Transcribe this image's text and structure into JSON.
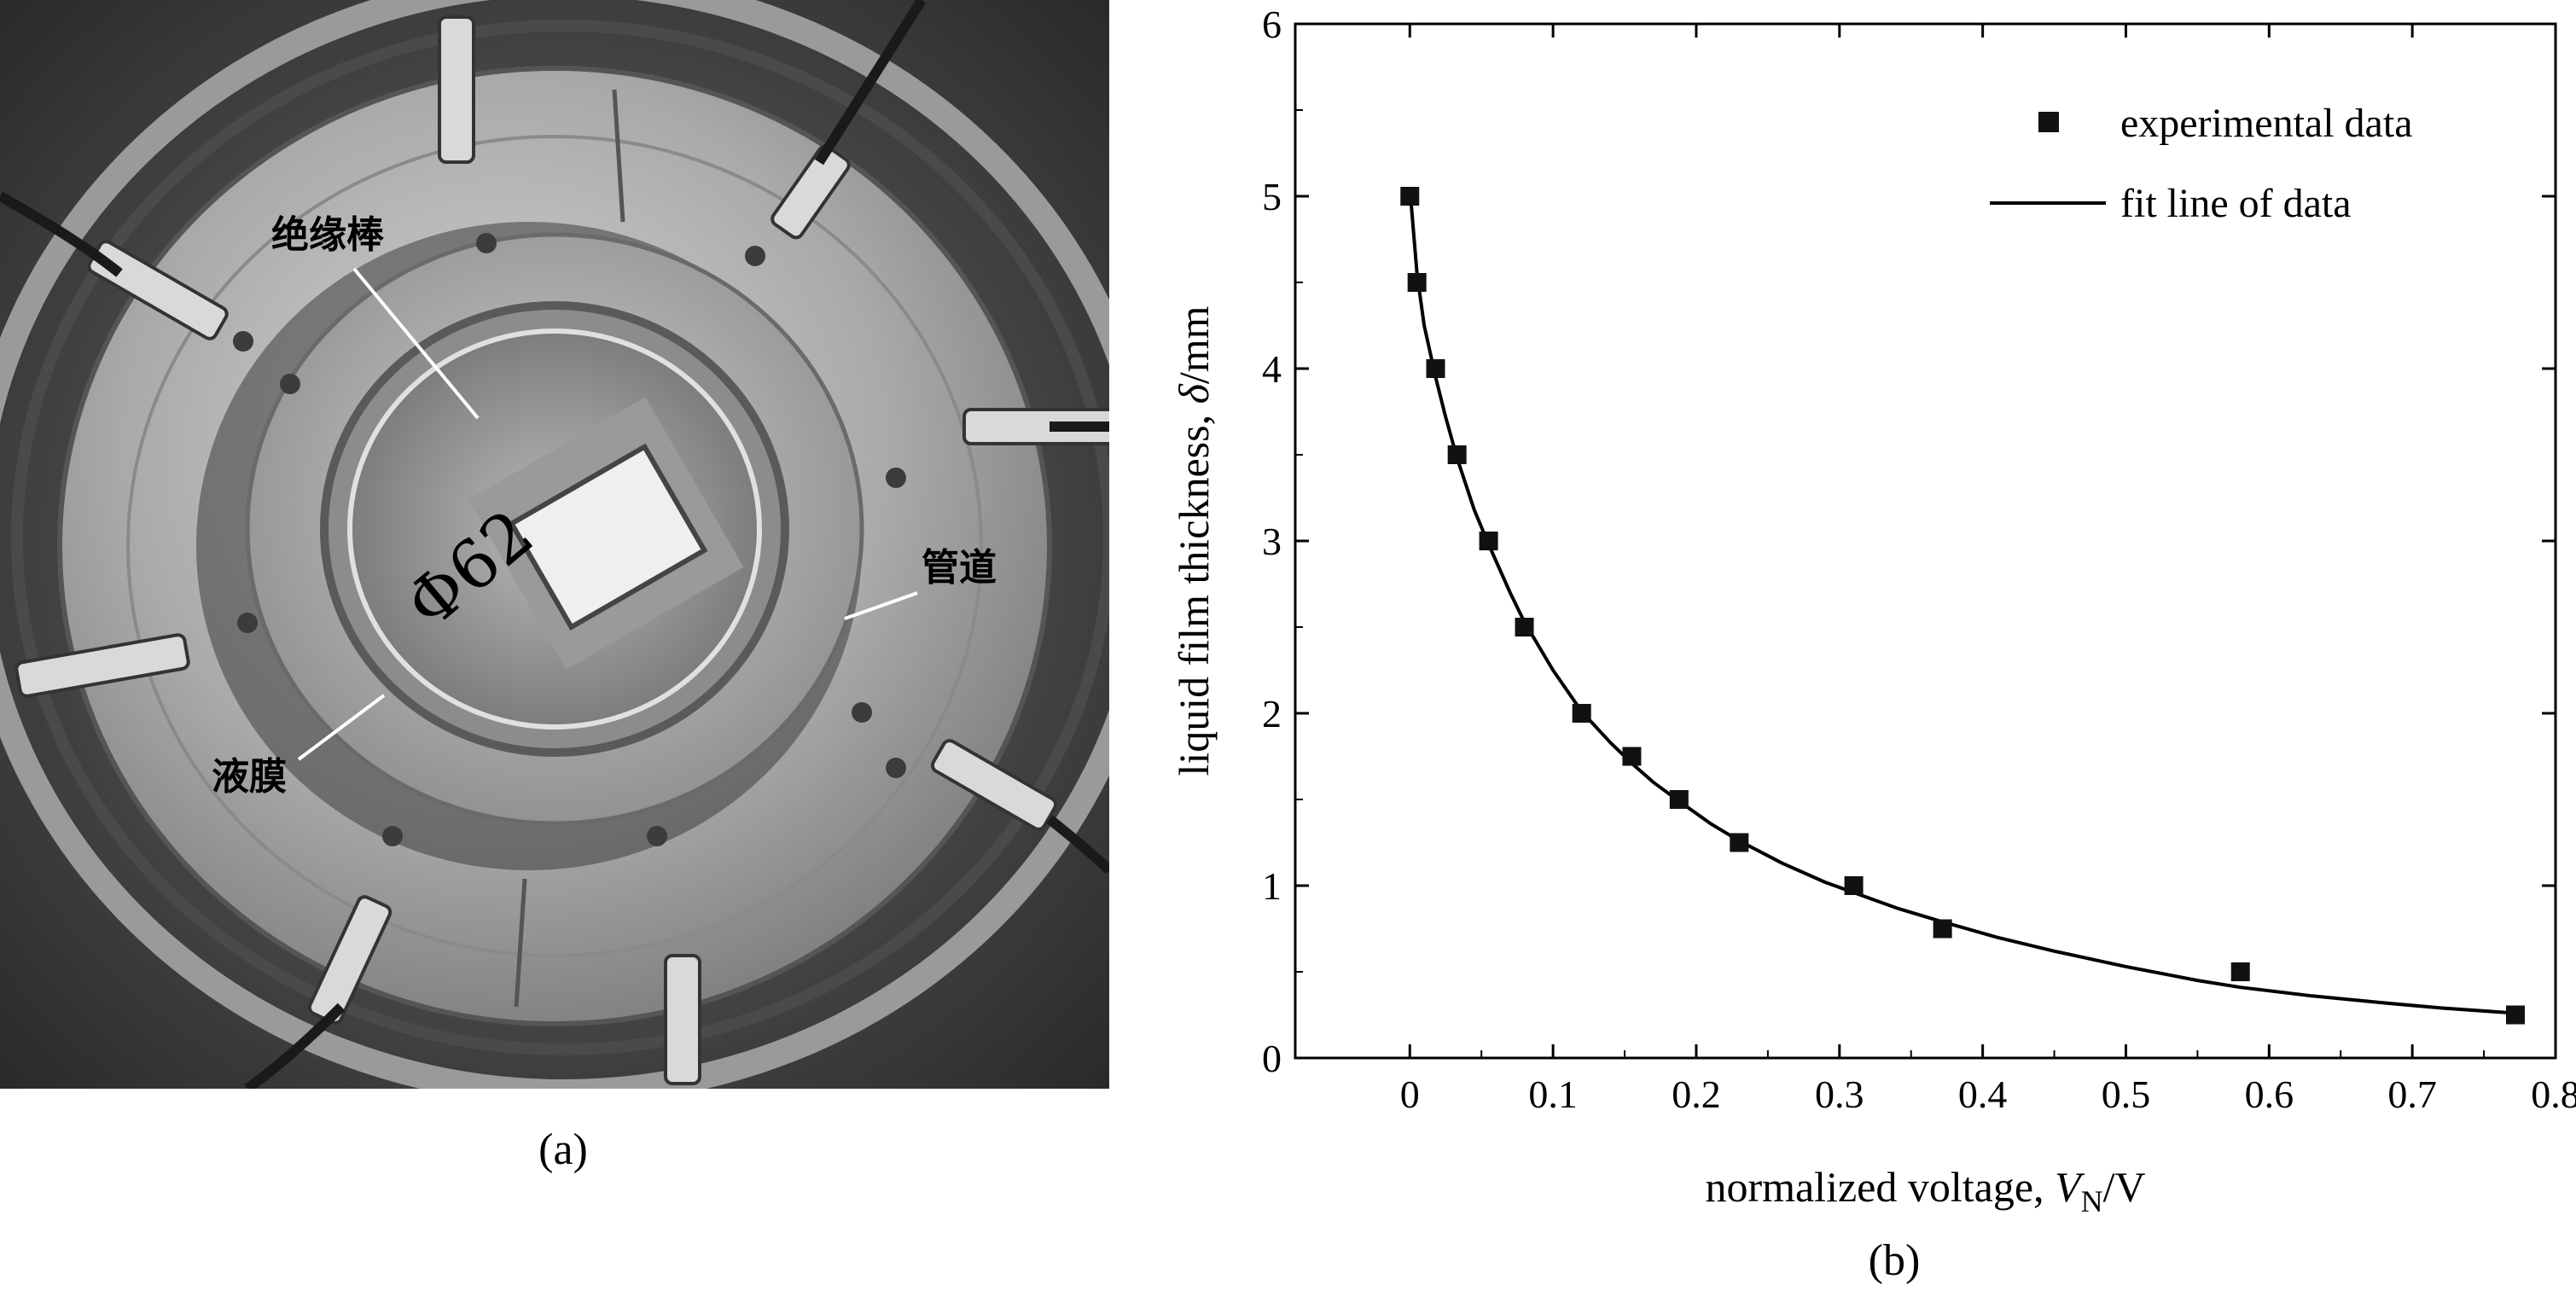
{
  "panel_a": {
    "caption": "(a)",
    "labels": {
      "insulating_rod": "绝缘棒",
      "pipe": "管道",
      "liquid_film": "液膜",
      "diameter": "Φ62"
    }
  },
  "panel_b": {
    "caption": "(b)"
  },
  "chart_data": {
    "type": "scatter",
    "xlabel": "normalized voltage, V_N/V",
    "ylabel": "liquid film thickness, δ/mm",
    "xlim": [
      -0.08,
      0.8
    ],
    "ylim": [
      0,
      6
    ],
    "x_ticks": [
      0,
      0.1,
      0.2,
      0.3,
      0.4,
      0.5,
      0.6,
      0.7,
      0.8
    ],
    "y_ticks": [
      0,
      1,
      2,
      3,
      4,
      5,
      6
    ],
    "x_tick_labels": [
      "0",
      "0.1",
      "0.2",
      "0.3",
      "0.4",
      "0.5",
      "0.6",
      "0.7",
      "0.8"
    ],
    "y_tick_labels": [
      "0",
      "1",
      "2",
      "3",
      "4",
      "5",
      "6"
    ],
    "grid": false,
    "legend_position": "top-right",
    "series": [
      {
        "name": "experimental data",
        "kind": "scatter",
        "marker": "square",
        "color": "#111111",
        "x": [
          0.0,
          0.005,
          0.018,
          0.033,
          0.055,
          0.08,
          0.12,
          0.155,
          0.188,
          0.23,
          0.31,
          0.372,
          0.58,
          0.772
        ],
        "y": [
          5.0,
          4.5,
          4.0,
          3.5,
          3.0,
          2.5,
          2.0,
          1.75,
          1.5,
          1.25,
          1.0,
          0.75,
          0.5,
          0.25
        ]
      },
      {
        "name": "fit line of data",
        "kind": "line",
        "color": "#000000",
        "x": [
          0.0,
          0.005,
          0.01,
          0.018,
          0.025,
          0.033,
          0.045,
          0.055,
          0.07,
          0.08,
          0.1,
          0.12,
          0.14,
          0.155,
          0.17,
          0.188,
          0.21,
          0.23,
          0.26,
          0.29,
          0.31,
          0.34,
          0.372,
          0.41,
          0.45,
          0.5,
          0.55,
          0.58,
          0.63,
          0.68,
          0.72,
          0.772
        ],
        "y": [
          5.05,
          4.55,
          4.25,
          3.95,
          3.72,
          3.48,
          3.18,
          2.98,
          2.7,
          2.53,
          2.25,
          2.01,
          1.83,
          1.71,
          1.6,
          1.49,
          1.36,
          1.26,
          1.13,
          1.02,
          0.96,
          0.87,
          0.79,
          0.7,
          0.62,
          0.53,
          0.45,
          0.41,
          0.36,
          0.32,
          0.29,
          0.26
        ]
      }
    ]
  }
}
